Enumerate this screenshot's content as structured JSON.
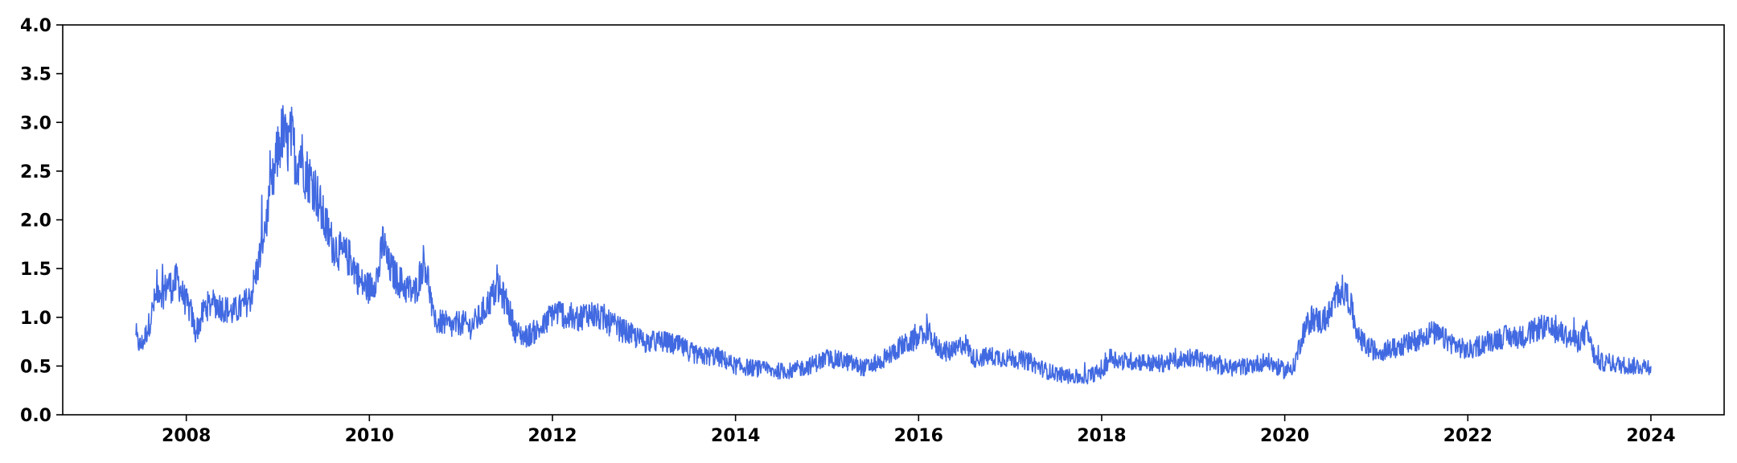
{
  "chart_data": {
    "type": "line",
    "title": "",
    "xlabel": "",
    "ylabel": "",
    "xlim": [
      2006.65,
      2024.8
    ],
    "ylim": [
      0.0,
      4.0
    ],
    "x_ticks": [
      "2008",
      "2010",
      "2012",
      "2014",
      "2016",
      "2018",
      "2020",
      "2022",
      "2024"
    ],
    "y_ticks": [
      "0.0",
      "0.5",
      "1.0",
      "1.5",
      "2.0",
      "2.5",
      "3.0",
      "3.5",
      "4.0"
    ],
    "grid": false,
    "legend": "none",
    "series": [
      {
        "color": "#4169e1",
        "x": [
          2007.45,
          2007.5,
          2007.55,
          2007.6,
          2007.65,
          2007.7,
          2007.75,
          2007.8,
          2007.85,
          2007.9,
          2007.95,
          2008.0,
          2008.05,
          2008.1,
          2008.15,
          2008.2,
          2008.3,
          2008.4,
          2008.5,
          2008.6,
          2008.7,
          2008.75,
          2008.8,
          2008.85,
          2008.9,
          2008.95,
          2009.0,
          2009.05,
          2009.1,
          2009.15,
          2009.2,
          2009.25,
          2009.3,
          2009.4,
          2009.5,
          2009.6,
          2009.7,
          2009.8,
          2009.9,
          2010.0,
          2010.1,
          2010.15,
          2010.2,
          2010.3,
          2010.4,
          2010.5,
          2010.6,
          2010.65,
          2010.7,
          2010.8,
          2010.9,
          2011.0,
          2011.1,
          2011.2,
          2011.3,
          2011.4,
          2011.5,
          2011.6,
          2011.7,
          2011.8,
          2011.9,
          2012.0,
          2012.1,
          2012.2,
          2012.3,
          2012.4,
          2012.5,
          2012.6,
          2012.7,
          2012.8,
          2012.9,
          2013.0,
          2013.2,
          2013.4,
          2013.6,
          2013.8,
          2014.0,
          2014.2,
          2014.4,
          2014.6,
          2014.8,
          2015.0,
          2015.2,
          2015.4,
          2015.6,
          2015.8,
          2016.0,
          2016.1,
          2016.2,
          2016.3,
          2016.4,
          2016.5,
          2016.6,
          2016.8,
          2017.0,
          2017.2,
          2017.4,
          2017.6,
          2017.8,
          2018.0,
          2018.1,
          2018.2,
          2018.4,
          2018.6,
          2018.8,
          2019.0,
          2019.2,
          2019.4,
          2019.6,
          2019.8,
          2020.0,
          2020.1,
          2020.2,
          2020.3,
          2020.4,
          2020.5,
          2020.6,
          2020.7,
          2020.8,
          2020.9,
          2021.0,
          2021.2,
          2021.4,
          2021.6,
          2021.8,
          2022.0,
          2022.2,
          2022.4,
          2022.6,
          2022.8,
          2023.0,
          2023.2,
          2023.3,
          2023.4,
          2023.6,
          2023.8,
          2024.0
        ],
        "y": [
          0.78,
          0.7,
          0.8,
          0.95,
          1.15,
          1.3,
          1.25,
          1.35,
          1.3,
          1.4,
          1.25,
          1.15,
          1.05,
          0.85,
          0.95,
          1.1,
          1.15,
          1.1,
          1.05,
          1.1,
          1.2,
          1.4,
          1.6,
          1.9,
          2.1,
          2.4,
          2.7,
          2.9,
          2.75,
          2.85,
          2.6,
          2.7,
          2.5,
          2.35,
          2.0,
          1.75,
          1.65,
          1.6,
          1.35,
          1.3,
          1.45,
          1.8,
          1.55,
          1.4,
          1.3,
          1.25,
          1.6,
          1.35,
          0.95,
          0.95,
          0.9,
          0.95,
          0.9,
          1.0,
          1.15,
          1.3,
          1.15,
          0.85,
          0.8,
          0.85,
          0.9,
          1.05,
          1.05,
          0.95,
          1.0,
          1.05,
          1.0,
          0.95,
          0.9,
          0.85,
          0.8,
          0.75,
          0.75,
          0.7,
          0.6,
          0.6,
          0.5,
          0.48,
          0.45,
          0.45,
          0.5,
          0.58,
          0.55,
          0.48,
          0.55,
          0.7,
          0.78,
          0.85,
          0.7,
          0.65,
          0.65,
          0.75,
          0.58,
          0.6,
          0.58,
          0.55,
          0.45,
          0.4,
          0.38,
          0.45,
          0.6,
          0.55,
          0.55,
          0.52,
          0.55,
          0.6,
          0.52,
          0.48,
          0.5,
          0.55,
          0.45,
          0.5,
          0.85,
          1.0,
          0.95,
          1.05,
          1.3,
          1.2,
          0.8,
          0.7,
          0.65,
          0.68,
          0.75,
          0.85,
          0.75,
          0.65,
          0.75,
          0.8,
          0.8,
          0.9,
          0.85,
          0.75,
          0.85,
          0.55,
          0.52,
          0.5,
          0.5
        ]
      }
    ]
  }
}
